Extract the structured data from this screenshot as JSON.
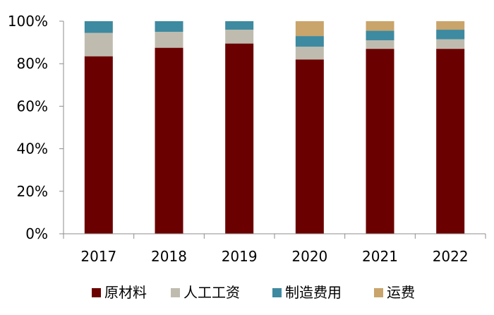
{
  "chart_data": {
    "type": "bar",
    "stacked": true,
    "title": "",
    "xlabel": "",
    "ylabel": "",
    "ylim": [
      0,
      100
    ],
    "y_ticks": [
      "0%",
      "20%",
      "40%",
      "60%",
      "80%",
      "100%"
    ],
    "y_tick_values": [
      0,
      20,
      40,
      60,
      80,
      100
    ],
    "categories": [
      "2017",
      "2018",
      "2019",
      "2020",
      "2021",
      "2022"
    ],
    "series": [
      {
        "name": "原材料",
        "color": "#6b0000",
        "values": [
          83.5,
          87.5,
          89.5,
          82,
          87,
          87
        ]
      },
      {
        "name": "人工工资",
        "color": "#bfbcaf",
        "values": [
          11,
          7.5,
          6.5,
          6,
          4,
          4.5
        ]
      },
      {
        "name": "制造费用",
        "color": "#3e8aa0",
        "values": [
          5.5,
          5,
          4,
          5,
          4.5,
          4.5
        ]
      },
      {
        "name": "运费",
        "color": "#c9a46b",
        "values": [
          0,
          0,
          0,
          7,
          4.5,
          4
        ]
      }
    ],
    "legend_position": "bottom",
    "grid": false
  }
}
